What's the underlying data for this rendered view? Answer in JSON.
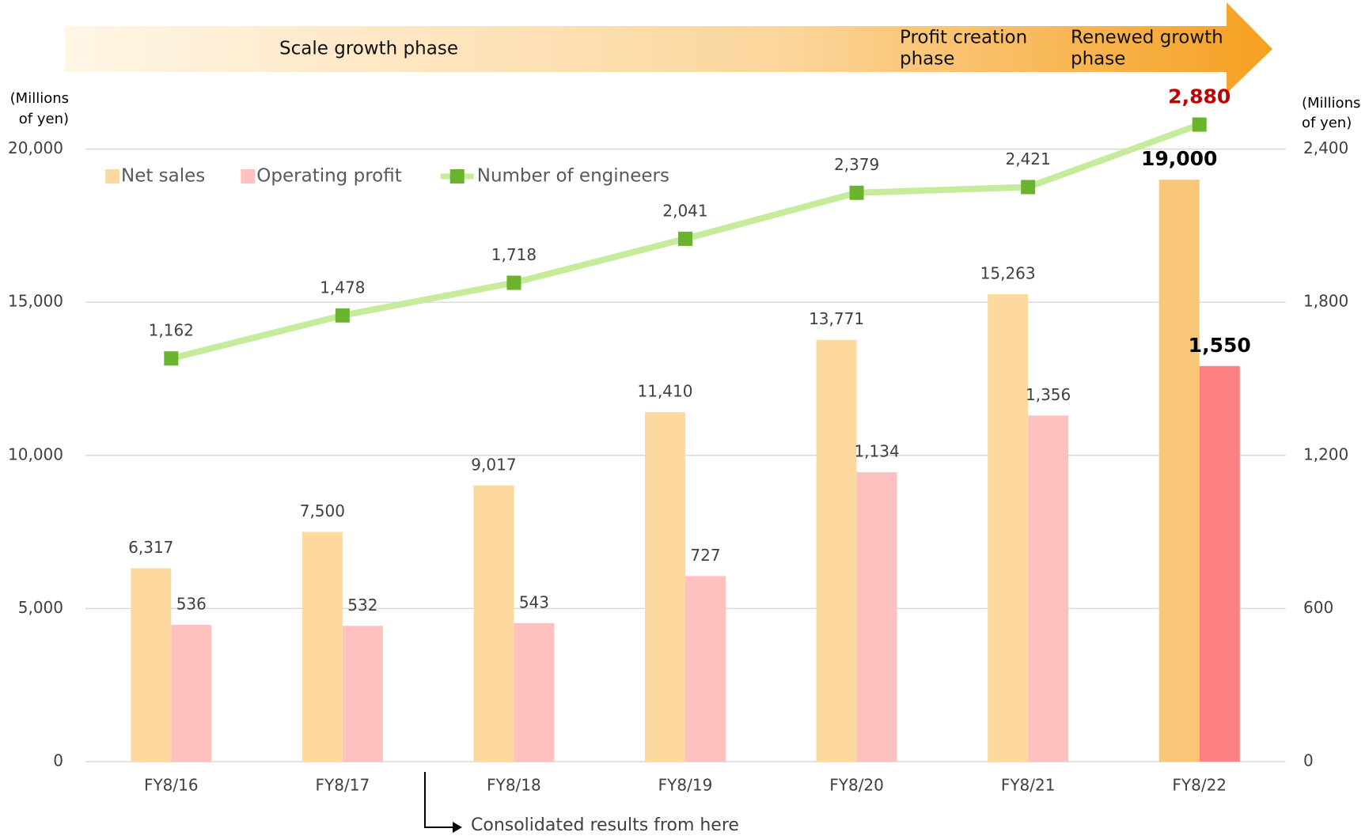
{
  "chart_data": {
    "type": "bar_line",
    "banner": {
      "phases": [
        [
          "Scale growth phase"
        ],
        [
          "Profit creation",
          "phase"
        ],
        [
          "Renewed growth",
          "phase"
        ]
      ]
    },
    "ylabel_lines": [
      "(Millions",
      "of yen)"
    ],
    "y2label_lines": [
      "(Millions",
      "of yen)"
    ],
    "categories": [
      "FY8/16",
      "FY8/17",
      "FY8/18",
      "FY8/19",
      "FY8/20",
      "FY8/21",
      "FY8/22"
    ],
    "ylim": [
      0,
      20000
    ],
    "yticks": [
      0,
      {
        "value": 5000,
        "label": "5,000"
      },
      {
        "value": 10000,
        "label": "10,000"
      },
      {
        "value": 15000,
        "label": "15,000"
      },
      {
        "value": 20000,
        "label": "20,000"
      }
    ],
    "y2lim": [
      0,
      2400
    ],
    "y2ticks": [
      0,
      600,
      {
        "value": 1200,
        "label": "1,200"
      },
      {
        "value": 1800,
        "label": "1,800"
      },
      {
        "value": 2400,
        "label": "2,400"
      }
    ],
    "y3lim": [
      -1800,
      2700
    ],
    "grid": true,
    "label_color": "#404040",
    "series": [
      {
        "name": "Net sales",
        "kind": "bar",
        "color": "#fdd9a0",
        "colors": [
          "#fdd9a0",
          "#fdd9a0",
          "#fdd9a0",
          "#fdd9a0",
          "#fdd9a0",
          "#fdd9a0",
          "#f9c677"
        ],
        "values": [
          6317,
          7500,
          9017,
          11410,
          13771,
          15263,
          19000
        ],
        "value_labels": [
          "6,317",
          "7,500",
          "9,017",
          "11,410",
          "13,771",
          "15,263",
          "19,000"
        ],
        "label_colors": [
          "#404040",
          "#404040",
          "#404040",
          "#404040",
          "#404040",
          "#404040",
          "#000000"
        ]
      },
      {
        "name": "Operating profit",
        "kind": "bar",
        "axis": "y2",
        "color": "#ffc0c0",
        "colors": [
          "#ffc0c0",
          "#ffc0c0",
          "#ffc0c0",
          "#ffc0c0",
          "#ffc0c0",
          "#ffc0c0",
          "#ff8080"
        ],
        "values": [
          536,
          532,
          543,
          727,
          1134,
          1356,
          1550
        ],
        "value_labels": [
          "536",
          "532",
          "543",
          "727",
          "1,134",
          "1,356",
          "1,550"
        ],
        "label_colors": [
          "#404040",
          "#404040",
          "#404040",
          "#404040",
          "#404040",
          "#404040",
          "#000000"
        ]
      },
      {
        "name": "Number of engineers",
        "kind": "line",
        "axis": "y3",
        "color": "#c6eb9a",
        "marker_color": "#6ab42d",
        "values": [
          1162,
          1478,
          1718,
          2041,
          2379,
          2421,
          2880
        ],
        "value_labels": [
          "1,162",
          "1,478",
          "1,718",
          "2,041",
          "2,379",
          "2,421",
          "2,880"
        ],
        "label_colors": [
          "#404040",
          "#404040",
          "#404040",
          "#404040",
          "#404040",
          "#404040",
          "#c00000"
        ]
      }
    ],
    "annotation": "Consolidated results from here"
  }
}
